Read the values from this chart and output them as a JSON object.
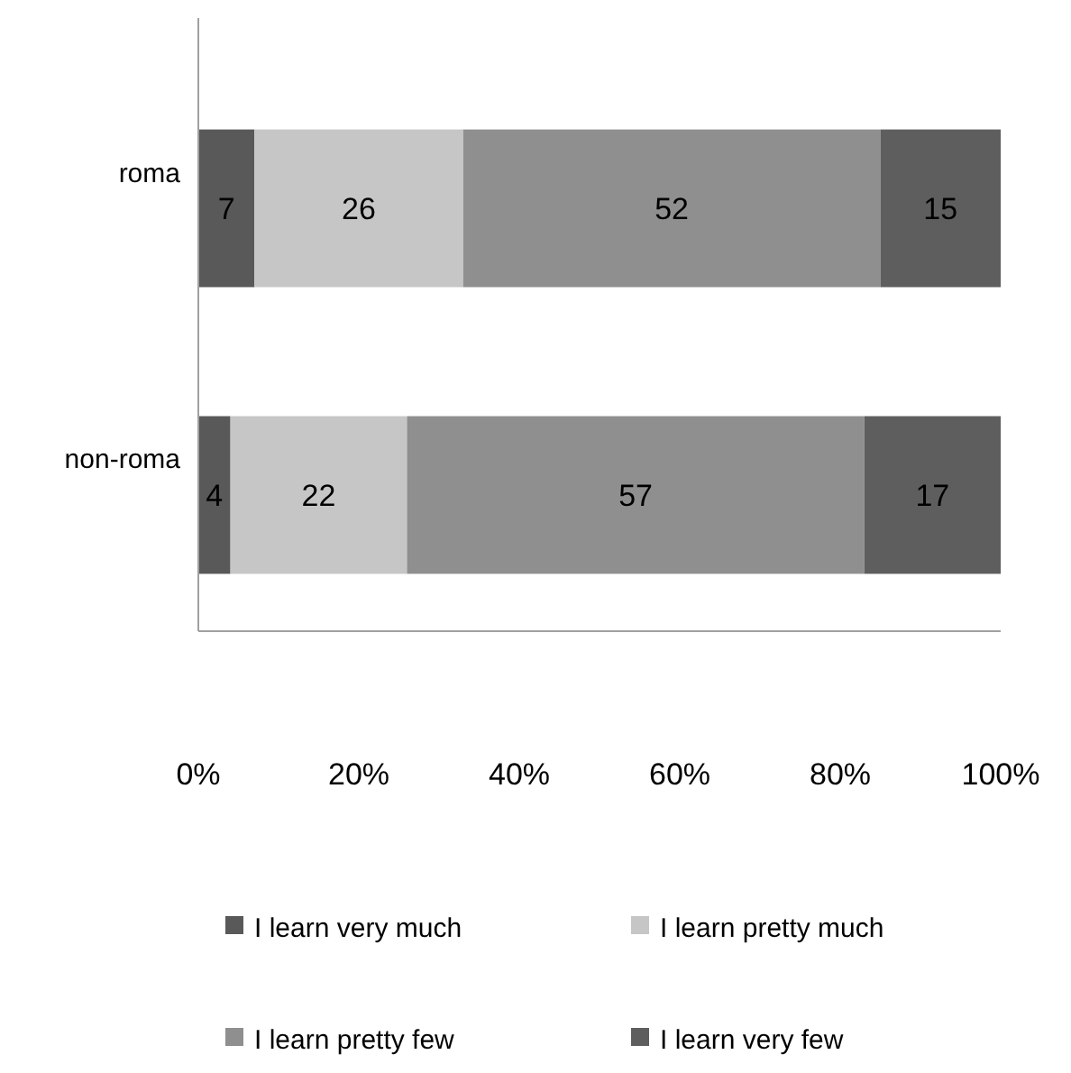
{
  "chart_data": {
    "type": "bar",
    "orientation": "horizontal",
    "stacked": true,
    "categories": [
      "roma",
      "non-roma"
    ],
    "series": [
      {
        "name": "I learn very much",
        "color": "#595959",
        "values": [
          7,
          4
        ]
      },
      {
        "name": "I learn pretty much",
        "color": "#c6c6c6",
        "values": [
          26,
          22
        ]
      },
      {
        "name": "I learn pretty few",
        "color": "#8f8f8f",
        "values": [
          52,
          57
        ]
      },
      {
        "name": "I learn very few",
        "color": "#5e5e5e",
        "values": [
          15,
          17
        ]
      }
    ],
    "xlim": [
      0,
      100
    ],
    "xticks": [
      {
        "value": 0,
        "label": "0%"
      },
      {
        "value": 20,
        "label": "20%"
      },
      {
        "value": 40,
        "label": "40%"
      },
      {
        "value": 60,
        "label": "60%"
      },
      {
        "value": 80,
        "label": "80%"
      },
      {
        "value": 100,
        "label": "100%"
      }
    ],
    "data_labels": true,
    "legend": "bottom"
  }
}
